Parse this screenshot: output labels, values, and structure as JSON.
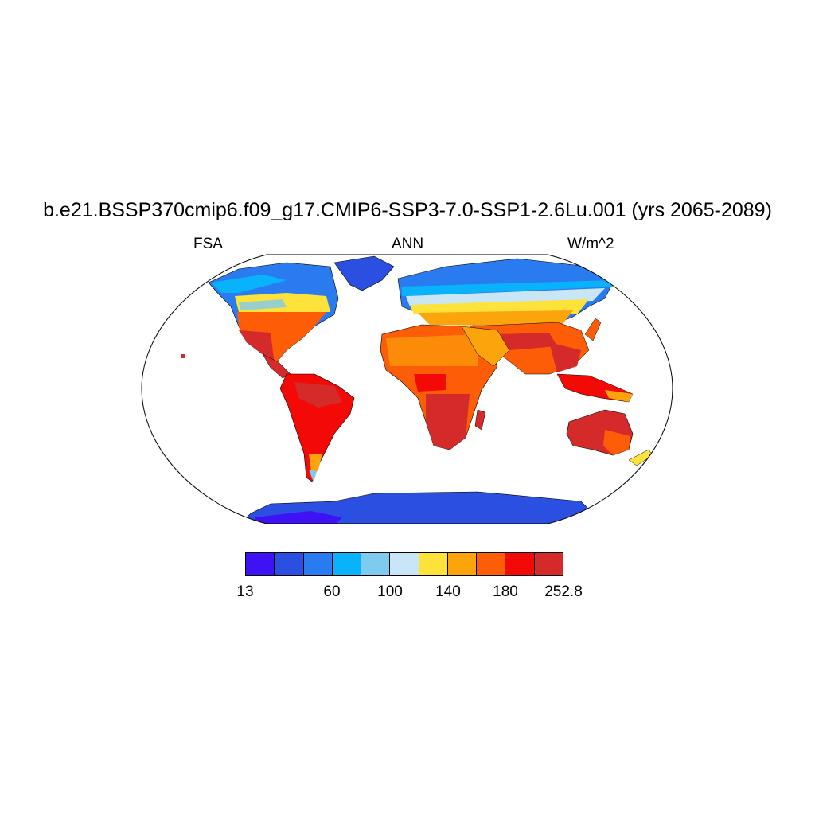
{
  "title": "b.e21.BSSP370cmip6.f09_g17.CMIP6-SSP3-7.0-SSP1-2.6Lu.001 (yrs 2065-2089)",
  "subtitle_left": "FSA",
  "subtitle_center": "ANN",
  "subtitle_right": "W/m^2",
  "colorbar": {
    "colors": [
      "#3f12f5",
      "#2b4fe0",
      "#2a7bf0",
      "#08b3fb",
      "#7ecbf0",
      "#c8e6f6",
      "#fde23a",
      "#fca40c",
      "#fd5d06",
      "#f30a06",
      "#d42a2a"
    ],
    "labels": [
      "13",
      "60",
      "100",
      "140",
      "180",
      "252.8"
    ]
  },
  "land_regions": [
    {
      "name": "Antarctica",
      "level": "lowest"
    },
    {
      "name": "Greenland",
      "level": "low"
    },
    {
      "name": "Arctic North America",
      "level": "low-moderate"
    },
    {
      "name": "Northern Eurasia",
      "level": "moderate"
    },
    {
      "name": "Sahara and Arabia",
      "level": "high"
    },
    {
      "name": "Central Africa",
      "level": "highest"
    },
    {
      "name": "Australia",
      "level": "highest"
    },
    {
      "name": "South America",
      "level": "high"
    }
  ]
}
